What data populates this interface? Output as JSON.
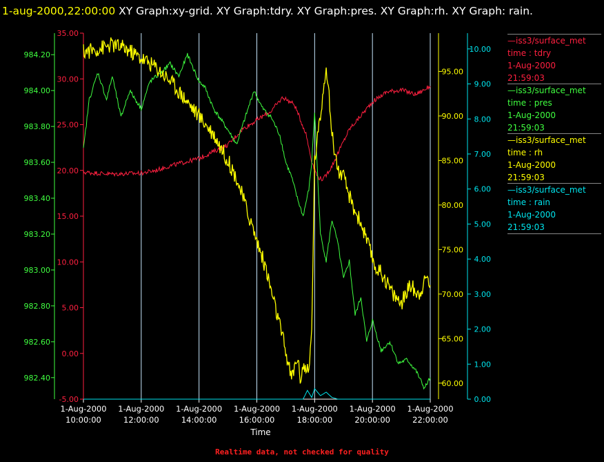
{
  "header": {
    "date": "1-aug-2000,22:00:00",
    "rest": " XY Graph:xy-grid.  XY Graph:tdry.  XY Graph:pres.  XY Graph:rh.  XY Graph: rain."
  },
  "footer": "Realtime data, not checked for quality",
  "colors": {
    "tdry": "#ff2040",
    "pres": "#40ff40",
    "rh": "#ffff00",
    "rain": "#00e5ee",
    "grid": "#c8e8ff"
  },
  "legend": [
    {
      "name": "iss3/surface_met",
      "line2": "time : tdry",
      "line3": "1-Aug-2000",
      "line4": "21:59:03",
      "color": "#ff2040"
    },
    {
      "name": "iss3/surface_met",
      "line2": "time : pres",
      "line3": "1-Aug-2000",
      "line4": "21:59:03",
      "color": "#40ff40"
    },
    {
      "name": "iss3/surface_met",
      "line2": "time : rh",
      "line3": "1-Aug-2000",
      "line4": "21:59:03",
      "color": "#ffff00"
    },
    {
      "name": "iss3/surface_met",
      "line2": "time : rain",
      "line3": "1-Aug-2000",
      "line4": "21:59:03",
      "color": "#00e5ee"
    }
  ],
  "chart_data": {
    "type": "line",
    "xlabel": "Time",
    "x_ticks": [
      {
        "d": "1-Aug-2000",
        "t": "10:00:00"
      },
      {
        "d": "1-Aug-2000",
        "t": "12:00:00"
      },
      {
        "d": "1-Aug-2000",
        "t": "14:00:00"
      },
      {
        "d": "1-Aug-2000",
        "t": "16:00:00"
      },
      {
        "d": "1-Aug-2000",
        "t": "18:00:00"
      },
      {
        "d": "1-Aug-2000",
        "t": "20:00:00"
      },
      {
        "d": "1-Aug-2000",
        "t": "22:00:00"
      }
    ],
    "x_hours": [
      10,
      12,
      14,
      16,
      18,
      20,
      22
    ],
    "xlim": [
      10,
      22
    ],
    "grid": true,
    "axes": {
      "tdry": {
        "ylim": [
          -5,
          35
        ],
        "ticks": [
          "-5.00",
          "0.00",
          "5.00",
          "10.00",
          "15.00",
          "20.00",
          "25.00",
          "30.00",
          "35.00"
        ],
        "tick_values": [
          -5,
          0,
          5,
          10,
          15,
          20,
          25,
          30,
          35
        ]
      },
      "pres": {
        "ylim": [
          982.28,
          984.32
        ],
        "ticks": [
          "982.40",
          "982.60",
          "982.80",
          "983.00",
          "983.20",
          "983.40",
          "983.60",
          "983.80",
          "984.00",
          "984.20"
        ],
        "tick_values": [
          982.4,
          982.6,
          982.8,
          983.0,
          983.2,
          983.4,
          983.6,
          983.8,
          984.0,
          984.2
        ]
      },
      "rh": {
        "ylim": [
          58.2,
          99.3
        ],
        "ticks": [
          "60.00",
          "65.00",
          "70.00",
          "75.00",
          "80.00",
          "85.00",
          "90.00",
          "95.00"
        ],
        "tick_values": [
          60,
          65,
          70,
          75,
          80,
          85,
          90,
          95
        ]
      },
      "rain": {
        "ylim": [
          0,
          10.45
        ],
        "ticks": [
          "0.00",
          "1.00",
          "2.00",
          "3.00",
          "4.00",
          "5.00",
          "6.00",
          "7.00",
          "8.00",
          "9.00",
          "10.00"
        ],
        "tick_values": [
          0,
          1,
          2,
          3,
          4,
          5,
          6,
          7,
          8,
          9,
          10
        ]
      }
    },
    "series": [
      {
        "key": "tdry",
        "x": [
          10.0,
          11.0,
          12.0,
          12.5,
          13.0,
          14.0,
          15.0,
          15.5,
          16.0,
          16.5,
          16.9,
          17.3,
          17.7,
          17.9,
          18.1,
          18.3,
          18.6,
          18.9,
          19.2,
          19.5,
          20.0,
          20.5,
          21.0,
          21.5,
          22.0
        ],
        "y": [
          19.8,
          19.6,
          19.7,
          20.0,
          20.5,
          21.3,
          22.8,
          24.5,
          25.5,
          26.5,
          28.0,
          27.2,
          24.0,
          21.0,
          19.3,
          19.0,
          20.5,
          22.5,
          24.5,
          25.6,
          27.5,
          28.6,
          28.8,
          28.3,
          29.2
        ]
      },
      {
        "key": "pres",
        "x": [
          10.0,
          10.2,
          10.5,
          10.8,
          11.0,
          11.3,
          11.6,
          12.0,
          12.3,
          12.7,
          13.0,
          13.3,
          13.6,
          14.0,
          14.2,
          14.5,
          15.0,
          15.3,
          15.6,
          15.9,
          16.2,
          16.5,
          16.8,
          17.0,
          17.2,
          17.4,
          17.6,
          17.8,
          17.9,
          18.0,
          18.2,
          18.4,
          18.6,
          18.8,
          19.0,
          19.2,
          19.4,
          19.6,
          19.8,
          20.0,
          20.3,
          20.6,
          20.9,
          21.2,
          21.5,
          21.8,
          22.0
        ],
        "y": [
          983.67,
          983.95,
          984.1,
          983.95,
          984.08,
          983.85,
          984.0,
          983.9,
          984.05,
          984.1,
          984.15,
          984.08,
          984.2,
          984.05,
          984.02,
          983.9,
          983.78,
          983.7,
          983.85,
          984.0,
          983.9,
          983.85,
          983.75,
          983.6,
          983.52,
          983.4,
          983.3,
          983.45,
          983.6,
          983.88,
          983.2,
          983.05,
          983.28,
          983.15,
          982.95,
          983.05,
          982.75,
          982.85,
          982.6,
          982.72,
          982.55,
          982.6,
          982.48,
          982.5,
          982.44,
          982.34,
          982.4
        ]
      },
      {
        "key": "rh",
        "x": [
          10.0,
          10.5,
          11.0,
          11.5,
          12.0,
          12.5,
          13.0,
          13.5,
          14.0,
          14.5,
          15.0,
          15.3,
          15.7,
          16.0,
          16.3,
          16.6,
          16.9,
          17.1,
          17.2,
          17.4,
          17.5,
          17.6,
          17.8,
          17.9,
          18.0,
          18.2,
          18.4,
          18.6,
          18.8,
          19.0,
          19.3,
          19.6,
          19.9,
          20.1,
          20.4,
          20.7,
          21.0,
          21.3,
          21.6,
          21.9,
          22.0
        ],
        "y": [
          97.2,
          97.5,
          98.0,
          97.5,
          96.5,
          95.5,
          94.0,
          92.0,
          90.0,
          88.0,
          85.0,
          83.0,
          79.0,
          76.0,
          73.0,
          69.0,
          65.0,
          62.0,
          60.5,
          63.0,
          60.5,
          62.0,
          61.0,
          66.0,
          85.0,
          90.0,
          96.0,
          88.0,
          84.0,
          83.0,
          80.0,
          78.0,
          75.0,
          73.0,
          72.0,
          70.0,
          69.0,
          71.0,
          70.0,
          72.0,
          71.0
        ]
      },
      {
        "key": "rain",
        "x": [
          10.0,
          17.6,
          17.75,
          17.9,
          18.0,
          18.2,
          18.4,
          18.6,
          18.8,
          22.0
        ],
        "y": [
          0.0,
          0.0,
          0.25,
          0.05,
          0.3,
          0.1,
          0.2,
          0.05,
          0.0,
          0.0
        ]
      }
    ]
  }
}
